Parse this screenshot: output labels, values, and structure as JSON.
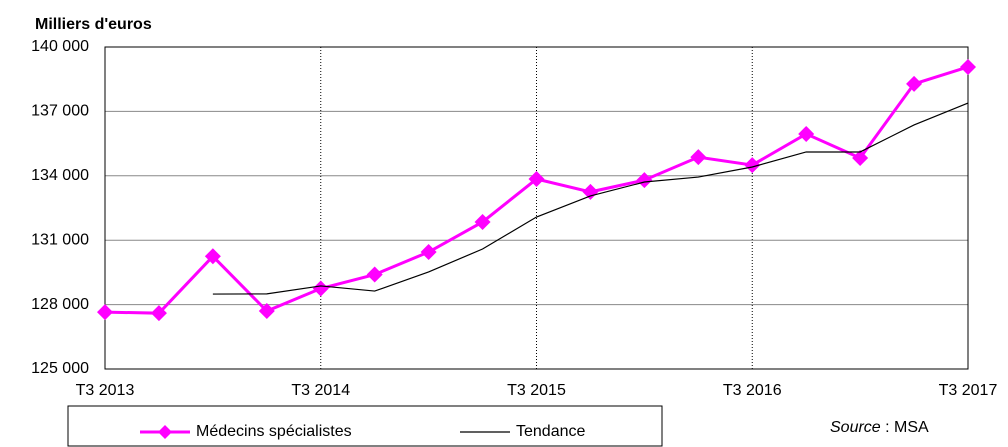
{
  "chart_data": {
    "type": "line",
    "title": "Milliers d'euros",
    "categories": [
      "T3 2013",
      null,
      null,
      null,
      "T3 2014",
      null,
      null,
      null,
      "T3 2015",
      null,
      null,
      null,
      "T3 2016",
      null,
      null,
      null,
      "T3 2017"
    ],
    "series": [
      {
        "name": "Médecins spécialistes",
        "color": "#ff00ff",
        "marker": "diamond",
        "values": [
          127650,
          127600,
          130250,
          127700,
          128750,
          129400,
          130450,
          131850,
          133850,
          133250,
          133800,
          134870,
          134500,
          135950,
          134830,
          138280,
          139070
        ]
      },
      {
        "name": "Tendance",
        "color": "#000000",
        "values": [
          null,
          null,
          128490,
          128500,
          128870,
          128630,
          129520,
          130590,
          132080,
          133060,
          133710,
          133940,
          134410,
          135110,
          135110,
          136370,
          137390
        ]
      }
    ],
    "ylim": [
      125000,
      140000
    ],
    "yticks": [
      {
        "value": 125000,
        "label": "125 000"
      },
      {
        "value": 128000,
        "label": "128 000"
      },
      {
        "value": 131000,
        "label": "131 000"
      },
      {
        "value": 134000,
        "label": "134 000"
      },
      {
        "value": 137000,
        "label": "137 000"
      },
      {
        "value": 140000,
        "label": "140 000"
      }
    ],
    "grid": true,
    "source_label": "Source",
    "source_text": " : MSA"
  }
}
